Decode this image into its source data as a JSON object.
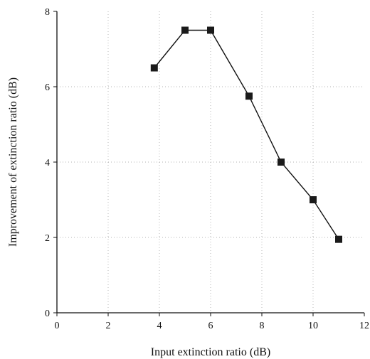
{
  "chart_data": {
    "type": "line",
    "xlabel": "Input extinction ratio (dB)",
    "ylabel": "Improvement of extinction ratio (dB)",
    "xlim": [
      0,
      12
    ],
    "ylim": [
      0,
      8
    ],
    "xticks": [
      0,
      2,
      4,
      6,
      8,
      10,
      12
    ],
    "yticks": [
      0,
      2,
      4,
      6,
      8
    ],
    "grid": true,
    "marker": "square",
    "series": [
      {
        "x": [
          3.8,
          5.0,
          6.0,
          7.5,
          8.75,
          10.0,
          11.0
        ],
        "y": [
          6.5,
          7.5,
          7.5,
          5.75,
          4.0,
          3.0,
          1.95
        ]
      }
    ]
  }
}
